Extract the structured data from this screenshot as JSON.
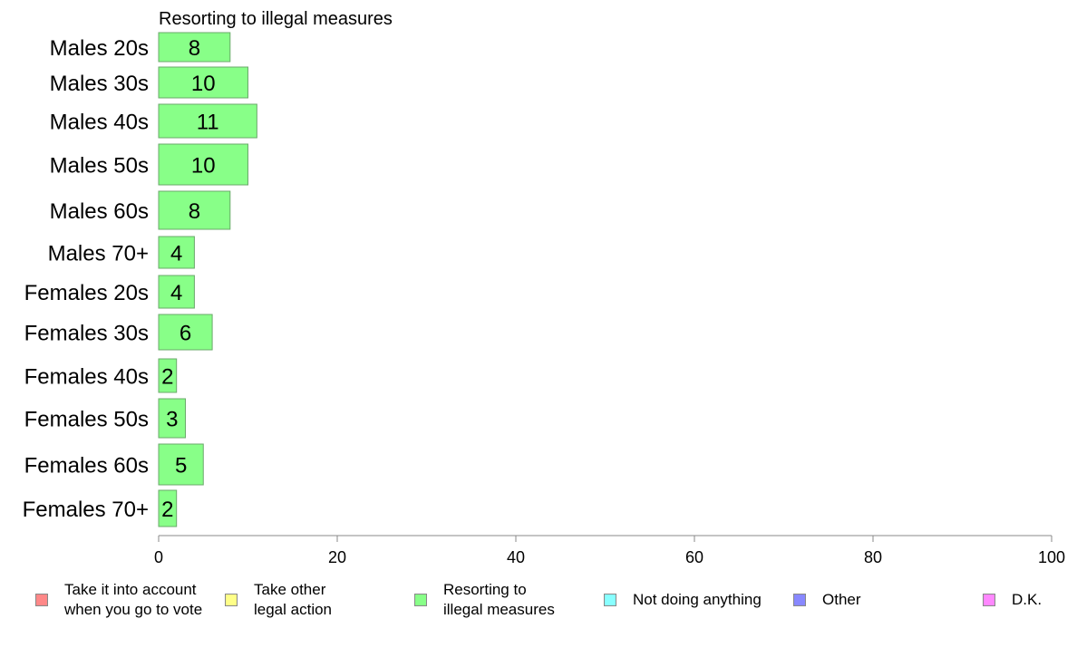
{
  "chart_data": {
    "type": "bar",
    "orientation": "horizontal",
    "title": "Resorting to illegal measures",
    "categories": [
      "Males 20s",
      "Males 30s",
      "Males 40s",
      "Males 50s",
      "Males 60s",
      "Males 70+",
      "Females 20s",
      "Females 30s",
      "Females 40s",
      "Females 50s",
      "Females 60s",
      "Females 70+"
    ],
    "values": [
      8,
      10,
      11,
      10,
      8,
      4,
      4,
      6,
      2,
      3,
      5,
      2
    ],
    "data_labels": [
      "8",
      "10",
      "11",
      "10",
      "8",
      "4",
      "4",
      "6",
      "2",
      "3",
      "5",
      "2"
    ],
    "xlim": [
      0,
      100
    ],
    "xticks": [
      "0",
      "20",
      "40",
      "60",
      "80",
      "100"
    ],
    "grid": false,
    "bar_color": "#88ff88",
    "legend": [
      {
        "label": "Take it into account\nwhen you go to vote",
        "color": "#ff8888"
      },
      {
        "label": "Take other\nlegal action",
        "color": "#ffff88"
      },
      {
        "label": "Resorting to\nillegal measures",
        "color": "#88ff88"
      },
      {
        "label": "Not doing anything",
        "color": "#88ffff"
      },
      {
        "label": "Other",
        "color": "#8888ff"
      },
      {
        "label": "D.K.",
        "color": "#ff88ff"
      }
    ]
  }
}
